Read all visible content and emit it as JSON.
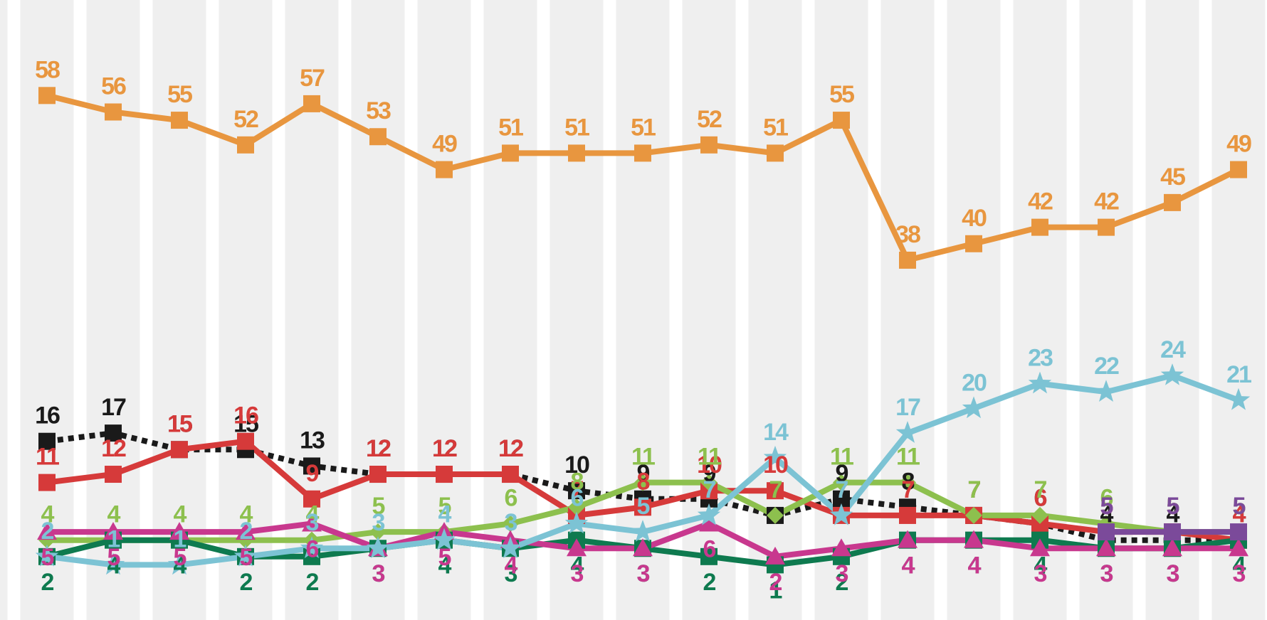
{
  "chart_data": {
    "type": "line",
    "categories": [
      null,
      null,
      null,
      null,
      null,
      null,
      null,
      null,
      null,
      null,
      null,
      null,
      null,
      null,
      null,
      null,
      null,
      null,
      null
    ],
    "ylim": [
      -5.7,
      69.6
    ],
    "series": [
      {
        "name": null,
        "color": "#e8963f",
        "marker": "square",
        "values": [
          58,
          56,
          55,
          52,
          57,
          53,
          49,
          51,
          51,
          51,
          52,
          51,
          55,
          38,
          40,
          42,
          42,
          45,
          49
        ]
      },
      {
        "name": null,
        "color": "#1a1a1a",
        "marker": "square",
        "dotted": true,
        "values": [
          16,
          17,
          15,
          15,
          13,
          12,
          12,
          12,
          10,
          9,
          9,
          7,
          9,
          8,
          7,
          6,
          4,
          4,
          4
        ]
      },
      {
        "name": null,
        "color": "#d63a3a",
        "marker": "square",
        "values": [
          11,
          12,
          15,
          16,
          9,
          12,
          12,
          12,
          7,
          8,
          10,
          10,
          7,
          7,
          7,
          6,
          5,
          5,
          4
        ]
      },
      {
        "name": null,
        "color": "#8dc04e",
        "marker": "diamond",
        "values": [
          4,
          4,
          4,
          4,
          4,
          5,
          5,
          6,
          8,
          11,
          11,
          7,
          11,
          11,
          7,
          7,
          6,
          5,
          5
        ]
      },
      {
        "name": null,
        "color": "#0e7a4f",
        "marker": "square",
        "values": [
          2,
          4,
          4,
          2,
          2,
          3,
          4,
          3,
          4,
          3,
          2,
          1,
          2,
          4,
          4,
          4,
          3,
          3,
          4
        ]
      },
      {
        "name": null,
        "color": "#c8388e",
        "marker": "triangle",
        "values": [
          5,
          5,
          5,
          5,
          6,
          3,
          5,
          4,
          3,
          3,
          6,
          2,
          3,
          4,
          4,
          3,
          3,
          3,
          3
        ]
      },
      {
        "name": null,
        "color": "#7cc3d4",
        "marker": "star",
        "values": [
          2,
          1,
          1,
          2,
          3,
          3,
          4,
          3,
          6,
          5,
          7,
          14,
          7,
          17,
          20,
          23,
          22,
          24,
          21
        ]
      },
      {
        "name": null,
        "color": "#7b4a9a",
        "marker": "square",
        "values": [
          null,
          null,
          null,
          null,
          null,
          null,
          null,
          null,
          null,
          null,
          null,
          null,
          null,
          null,
          null,
          null,
          5,
          5,
          5
        ]
      }
    ]
  }
}
